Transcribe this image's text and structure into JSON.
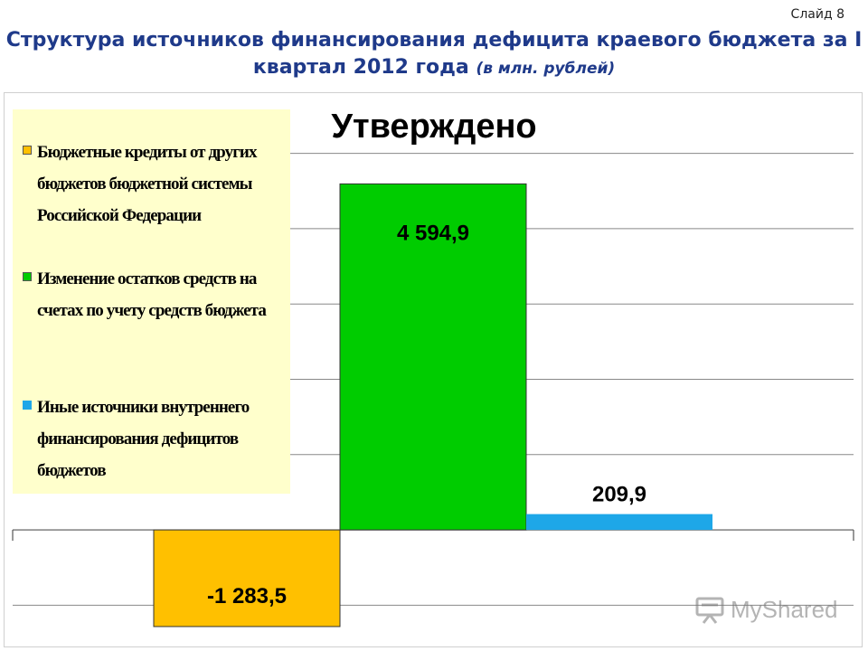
{
  "slide": {
    "number_label": "Слайд  8",
    "title_main": "Структура источников финансирования дефицита краевого бюджета за I квартал 2012 года",
    "title_unit": "(в млн. рублей)"
  },
  "watermark": {
    "text": "MyShared"
  },
  "colors": {
    "title": "#1f3a8a",
    "legend_bg": "#ffffcc",
    "series_1": "#ffc000",
    "series_2": "#00cc00",
    "series_3": "#1ea7e8",
    "grid": "#888888"
  },
  "chart_data": {
    "type": "bar",
    "title": "Утверждено",
    "categories": [
      "Утверждено"
    ],
    "series": [
      {
        "name": "Бюджетные кредиты от других бюджетов бюджетной системы Российской Федерации",
        "values": [
          -1283.5
        ],
        "label": "-1 283,5",
        "color": "#ffc000"
      },
      {
        "name": "Изменение остатков средств на счетах по учету средств бюджета",
        "values": [
          4594.9
        ],
        "label": "4 594,9",
        "color": "#00cc00"
      },
      {
        "name": "Иные источники внутреннего финансирования дефицитов бюджетов",
        "values": [
          209.9
        ],
        "label": "209,9",
        "color": "#1ea7e8"
      }
    ],
    "ylim": [
      -1500,
      5500
    ],
    "grid": true,
    "legend_position": "left",
    "xlabel": "",
    "ylabel": ""
  }
}
